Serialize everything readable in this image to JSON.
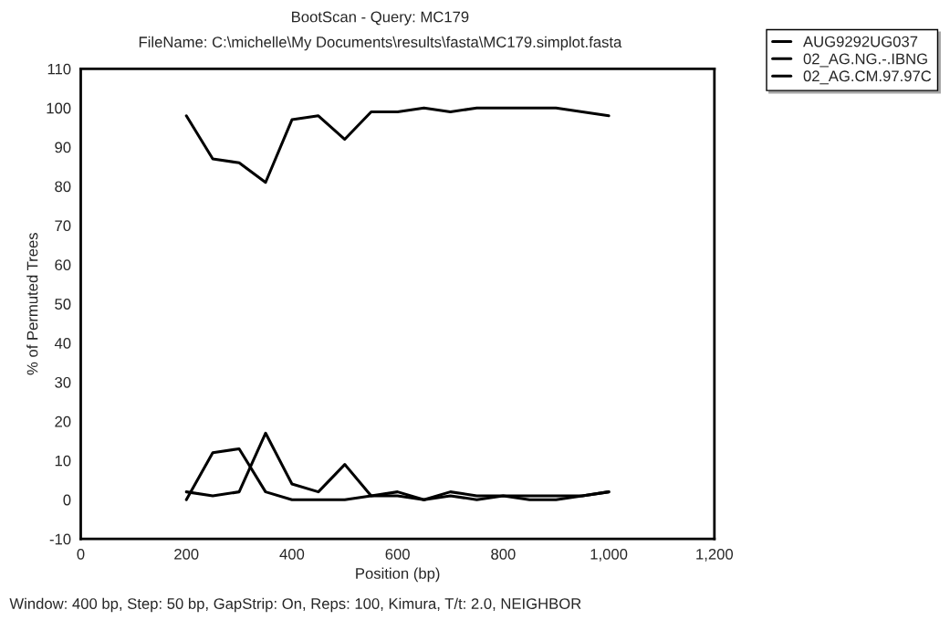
{
  "chart_data": {
    "type": "line",
    "title": "BootScan - Query: MC179",
    "subtitle": "FileName: C:\\michelle\\My Documents\\results\\fasta\\MC179.simplot.fasta",
    "xlabel": "Position (bp)",
    "ylabel": "% of Permuted Trees",
    "x": [
      200,
      250,
      300,
      350,
      400,
      450,
      500,
      550,
      600,
      650,
      700,
      750,
      800,
      850,
      900,
      950,
      1000
    ],
    "series": [
      {
        "name": "AUG9292UG037",
        "color": "#000000",
        "values": [
          98,
          87,
          86,
          81,
          97,
          98,
          92,
          99,
          99,
          100,
          99,
          100,
          100,
          100,
          100,
          99,
          98
        ]
      },
      {
        "name": "02_AG.NG.-.IBNG",
        "color": "#000000",
        "values": [
          0,
          12,
          13,
          2,
          0,
          0,
          0,
          1,
          1,
          0,
          1,
          0,
          1,
          0,
          0,
          1,
          2
        ]
      },
      {
        "name": "02_AG.CM.97.97C",
        "color": "#000000",
        "values": [
          2,
          1,
          2,
          17,
          4,
          2,
          9,
          1,
          2,
          0,
          2,
          1,
          1,
          1,
          1,
          1,
          2
        ]
      }
    ],
    "xlim": [
      0,
      1200
    ],
    "xticks": [
      0,
      200,
      400,
      600,
      800,
      {
        "value": 1000,
        "label": "1,000"
      },
      {
        "value": 1200,
        "label": "1,200"
      }
    ],
    "ylim": [
      -10,
      110
    ],
    "yticks": [
      -10,
      0,
      10,
      20,
      30,
      40,
      50,
      60,
      70,
      80,
      90,
      100,
      110
    ],
    "grid": false,
    "legend": "top right",
    "marker": "none",
    "line_style": "solid",
    "annotations": [
      "Window: 400 bp, Step: 50 bp, GapStrip: On, Reps: 100, Kimura, T/t: 2.0, NEIGHBOR"
    ]
  }
}
